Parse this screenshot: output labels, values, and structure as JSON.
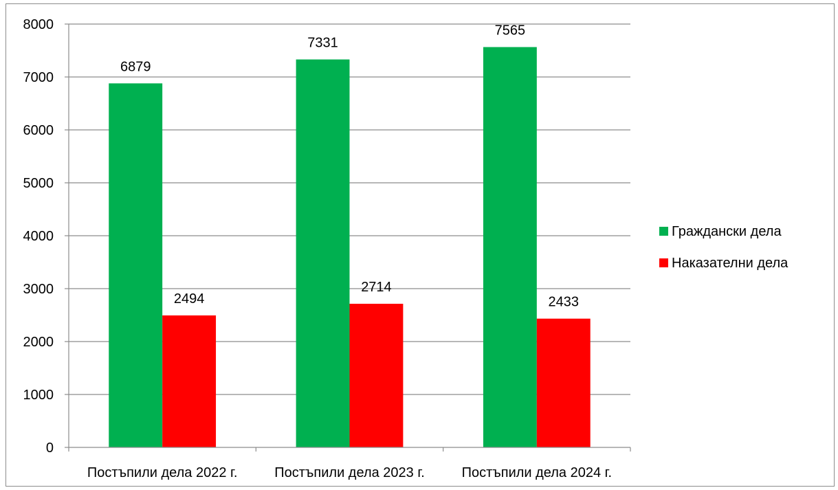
{
  "chart_data": {
    "type": "bar",
    "categories": [
      "Постъпили дела 2022 г.",
      "Постъпили дела 2023 г.",
      "Постъпили дела 2024 г."
    ],
    "series": [
      {
        "name": "Граждански дела",
        "values": [
          6879,
          7331,
          7565
        ],
        "color": "#00b050"
      },
      {
        "name": "Наказателни дела",
        "values": [
          2494,
          2714,
          2433
        ],
        "color": "#ff0000"
      }
    ],
    "yticks": [
      "0",
      "1000",
      "2000",
      "3000",
      "4000",
      "5000",
      "6000",
      "7000",
      "8000"
    ],
    "ylim": [
      0,
      8000
    ],
    "grid": true,
    "legend_position": "right",
    "title": "",
    "xlabel": "",
    "ylabel": ""
  }
}
